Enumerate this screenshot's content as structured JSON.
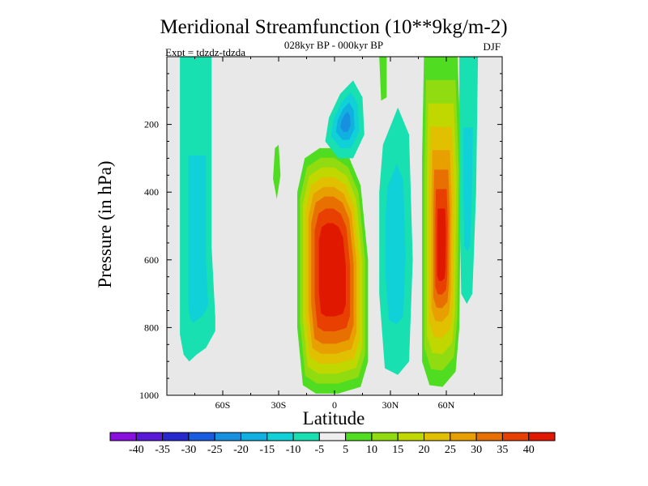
{
  "chart_data": {
    "type": "heatmap",
    "title": "Meridional Streamfunction (10**9kg/m-2)",
    "subtitle": "028kyr BP - 000kyr BP",
    "left_label": "Expt = tdzdz-tdzda",
    "right_label": "DJF",
    "xlabel": "Latitude",
    "ylabel": "Pressure (in hPa)",
    "xlim": [
      -90,
      90
    ],
    "ylim": [
      1000,
      0
    ],
    "x_ticks": [
      {
        "value": -60,
        "label": "60S"
      },
      {
        "value": -30,
        "label": "30S"
      },
      {
        "value": 0,
        "label": "0"
      },
      {
        "value": 30,
        "label": "30N"
      },
      {
        "value": 60,
        "label": "60N"
      }
    ],
    "y_ticks": [
      {
        "value": 200,
        "label": "200"
      },
      {
        "value": 400,
        "label": "400"
      },
      {
        "value": 600,
        "label": "600"
      },
      {
        "value": 800,
        "label": "800"
      },
      {
        "value": 1000,
        "label": "1000"
      }
    ],
    "background_color": "#e8e8e8",
    "colorbar": {
      "levels": [
        "-40",
        "-35",
        "-30",
        "-25",
        "-20",
        "-15",
        "-10",
        "-5",
        "5",
        "10",
        "15",
        "20",
        "25",
        "30",
        "35",
        "40"
      ],
      "colors": [
        "#8a10e0",
        "#5a18d8",
        "#2828d0",
        "#1a5ce0",
        "#1890e0",
        "#10b0e0",
        "#10d0d8",
        "#18e0b0",
        "#eeeeee",
        "#50dc20",
        "#90dc10",
        "#c0d800",
        "#e0c000",
        "#e8a000",
        "#e87000",
        "#e84000",
        "#e01800"
      ]
    },
    "features": [
      {
        "name": "antarctic-negative-cell",
        "lat_range": [
          -83,
          -66
        ],
        "p_range": [
          0,
          900
        ],
        "min_value": -15
      },
      {
        "name": "upper-tropical-negative-cell",
        "lat_range": [
          -5,
          15
        ],
        "p_range": [
          70,
          300
        ],
        "min_value": -20
      },
      {
        "name": "tropical-positive-cell",
        "lat_range": [
          -20,
          20
        ],
        "p_range": [
          280,
          1000
        ],
        "max_value": 40
      },
      {
        "name": "northern-negative-cell",
        "lat_range": [
          25,
          42
        ],
        "p_range": [
          150,
          940
        ],
        "min_value": -10
      },
      {
        "name": "midlatitude-positive-cell",
        "lat_range": [
          48,
          68
        ],
        "p_range": [
          0,
          970
        ],
        "max_value": 40
      },
      {
        "name": "arctic-negative-cell",
        "lat_range": [
          68,
          77
        ],
        "p_range": [
          0,
          730
        ],
        "min_value": -10
      }
    ]
  }
}
